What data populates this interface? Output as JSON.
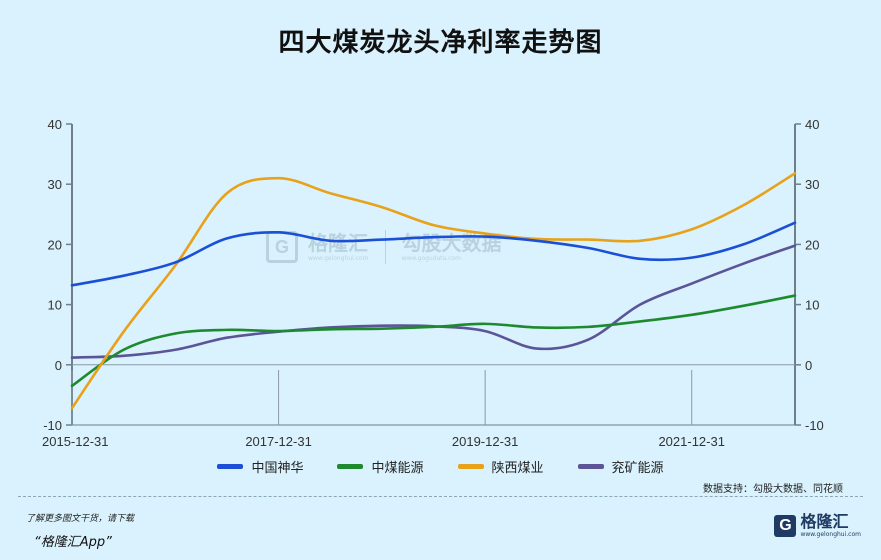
{
  "title": "四大煤炭龙头净利率走势图",
  "chart_data": {
    "type": "line",
    "x": [
      "2015-12-31",
      "2016-06-30",
      "2016-12-31",
      "2017-06-30",
      "2017-12-31",
      "2018-06-30",
      "2018-12-31",
      "2019-06-30",
      "2019-12-31",
      "2020-06-30",
      "2020-12-31",
      "2021-06-30",
      "2021-12-31",
      "2022-06-30",
      "2022-12-31"
    ],
    "x_ticks": [
      "2015-12-31",
      "2017-12-31",
      "2019-12-31",
      "2021-12-31"
    ],
    "ylim": [
      -10,
      40
    ],
    "y_ticks": [
      -10,
      0,
      10,
      20,
      30,
      40
    ],
    "series": [
      {
        "name": "中国神华",
        "color": "#1a4fd6",
        "values": [
          13.2,
          14.8,
          17.0,
          21.0,
          22.0,
          20.6,
          20.8,
          21.2,
          21.3,
          20.6,
          19.4,
          17.6,
          17.8,
          20.0,
          23.6
        ]
      },
      {
        "name": "中煤能源",
        "color": "#1e8a2e",
        "values": [
          -3.5,
          2.5,
          5.2,
          5.8,
          5.6,
          5.9,
          6.0,
          6.3,
          6.8,
          6.2,
          6.3,
          7.2,
          8.3,
          9.8,
          11.5
        ]
      },
      {
        "name": "陕西煤业",
        "color": "#e8a21a",
        "values": [
          -7.2,
          5.5,
          16.5,
          28.5,
          31.0,
          28.5,
          26.2,
          23.2,
          21.8,
          20.9,
          20.8,
          20.6,
          22.5,
          26.5,
          31.8
        ]
      },
      {
        "name": "兖矿能源",
        "color": "#5b5597",
        "values": [
          1.2,
          1.5,
          2.5,
          4.5,
          5.5,
          6.2,
          6.5,
          6.4,
          5.6,
          2.7,
          4.2,
          10.0,
          13.5,
          16.8,
          19.8
        ]
      }
    ]
  },
  "source": "数据支持：勾股大数据、同花顺",
  "footer": {
    "line1": "了解更多图文干货，请下载",
    "line2": "“格隆汇App”"
  },
  "logo": {
    "mark": "G",
    "name": "格隆汇",
    "url": "www.gelonghui.com"
  },
  "watermark": {
    "mark": "G",
    "name1": "格隆汇",
    "url1": "www.gelonghui.com",
    "name2": "勾股大数据",
    "url2": "www.gogudata.com"
  }
}
